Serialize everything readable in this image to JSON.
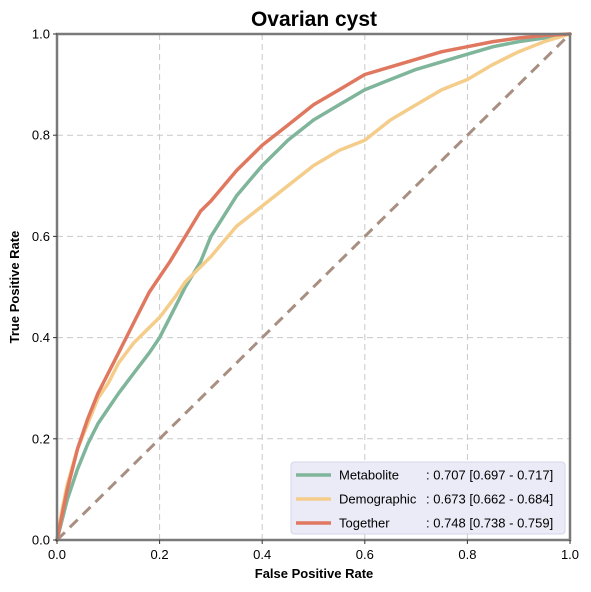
{
  "chart_data": {
    "type": "line",
    "title": "Ovarian cyst",
    "xlabel": "False Positive Rate",
    "ylabel": "True Positive Rate",
    "xlim": [
      0,
      1
    ],
    "ylim": [
      0,
      1
    ],
    "xticks": [
      "0.0",
      "0.2",
      "0.4",
      "0.6",
      "0.8",
      "1.0"
    ],
    "yticks": [
      "0.0",
      "0.2",
      "0.4",
      "0.6",
      "0.8",
      "1.0"
    ],
    "grid": true,
    "legend_position": "lower-right",
    "diagonal_color": "#a88f82",
    "series": [
      {
        "name": "Metabolite",
        "label_name": "Metabolite",
        "label_value": ": 0.707 [0.697 - 0.717]",
        "color": "#7fb59a",
        "x": [
          0,
          0.01,
          0.02,
          0.03,
          0.04,
          0.06,
          0.08,
          0.1,
          0.12,
          0.15,
          0.18,
          0.2,
          0.22,
          0.25,
          0.28,
          0.3,
          0.35,
          0.4,
          0.45,
          0.5,
          0.55,
          0.6,
          0.65,
          0.7,
          0.75,
          0.8,
          0.85,
          0.9,
          0.95,
          1.0
        ],
        "y": [
          0,
          0.04,
          0.08,
          0.11,
          0.14,
          0.19,
          0.23,
          0.26,
          0.29,
          0.33,
          0.37,
          0.4,
          0.44,
          0.5,
          0.55,
          0.6,
          0.68,
          0.74,
          0.79,
          0.83,
          0.86,
          0.89,
          0.91,
          0.93,
          0.945,
          0.96,
          0.975,
          0.985,
          0.992,
          1.0
        ]
      },
      {
        "name": "Demographic",
        "label_name": "Demographic",
        "label_value": ": 0.673 [0.662 - 0.684]",
        "color": "#f5cd8b",
        "x": [
          0,
          0.01,
          0.02,
          0.04,
          0.06,
          0.08,
          0.1,
          0.12,
          0.15,
          0.18,
          0.2,
          0.23,
          0.25,
          0.3,
          0.35,
          0.4,
          0.45,
          0.5,
          0.55,
          0.6,
          0.65,
          0.7,
          0.75,
          0.8,
          0.85,
          0.9,
          0.95,
          1.0
        ],
        "y": [
          0,
          0.06,
          0.11,
          0.18,
          0.23,
          0.28,
          0.31,
          0.35,
          0.39,
          0.42,
          0.44,
          0.48,
          0.51,
          0.56,
          0.62,
          0.66,
          0.7,
          0.74,
          0.77,
          0.79,
          0.83,
          0.86,
          0.89,
          0.91,
          0.94,
          0.965,
          0.985,
          1.0
        ]
      },
      {
        "name": "Together",
        "label_name": "Together",
        "label_value": ": 0.748 [0.738 - 0.759]",
        "color": "#e07860",
        "x": [
          0,
          0.01,
          0.02,
          0.03,
          0.04,
          0.06,
          0.08,
          0.1,
          0.12,
          0.15,
          0.18,
          0.2,
          0.22,
          0.25,
          0.28,
          0.3,
          0.35,
          0.4,
          0.45,
          0.5,
          0.55,
          0.6,
          0.65,
          0.7,
          0.75,
          0.8,
          0.85,
          0.9,
          0.95,
          1.0
        ],
        "y": [
          0,
          0.05,
          0.1,
          0.14,
          0.18,
          0.24,
          0.29,
          0.33,
          0.37,
          0.43,
          0.49,
          0.52,
          0.55,
          0.6,
          0.65,
          0.67,
          0.73,
          0.78,
          0.82,
          0.86,
          0.89,
          0.92,
          0.935,
          0.95,
          0.965,
          0.975,
          0.985,
          0.992,
          0.997,
          1.0
        ]
      }
    ]
  }
}
